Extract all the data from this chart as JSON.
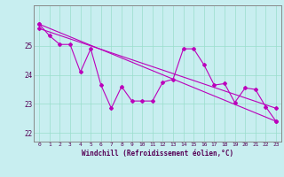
{
  "xlabel": "Windchill (Refroidissement éolien,°C)",
  "background_color": "#c8eef0",
  "grid_color": "#99ddcc",
  "line_color": "#bb00bb",
  "spine_color": "#888888",
  "xlim": [
    -0.5,
    23.5
  ],
  "ylim": [
    21.7,
    26.4
  ],
  "xticks": [
    0,
    1,
    2,
    3,
    4,
    5,
    6,
    7,
    8,
    9,
    10,
    11,
    12,
    13,
    14,
    15,
    16,
    17,
    18,
    19,
    20,
    21,
    22,
    23
  ],
  "yticks": [
    22,
    23,
    24,
    25
  ],
  "series1_x": [
    0,
    1,
    2,
    3,
    4,
    5,
    6,
    7,
    8,
    9,
    10,
    11,
    12,
    13,
    14,
    15,
    16,
    17,
    18,
    19,
    20,
    21,
    22,
    23
  ],
  "series1_y": [
    25.75,
    25.35,
    25.05,
    25.05,
    24.1,
    24.9,
    23.65,
    22.85,
    23.6,
    23.1,
    23.1,
    23.1,
    23.75,
    23.85,
    24.9,
    24.9,
    24.35,
    23.65,
    23.7,
    23.05,
    23.55,
    23.5,
    22.9,
    22.4
  ],
  "series2_x": [
    0,
    5,
    23
  ],
  "series2_y": [
    25.75,
    24.85,
    22.35
  ],
  "series3_x": [
    0,
    5,
    23
  ],
  "series3_y": [
    25.75,
    24.85,
    22.35
  ],
  "trend1_x": [
    0,
    23
  ],
  "trend1_y": [
    25.75,
    22.4
  ],
  "trend2_x": [
    0,
    23
  ],
  "trend2_y": [
    25.6,
    22.85
  ]
}
